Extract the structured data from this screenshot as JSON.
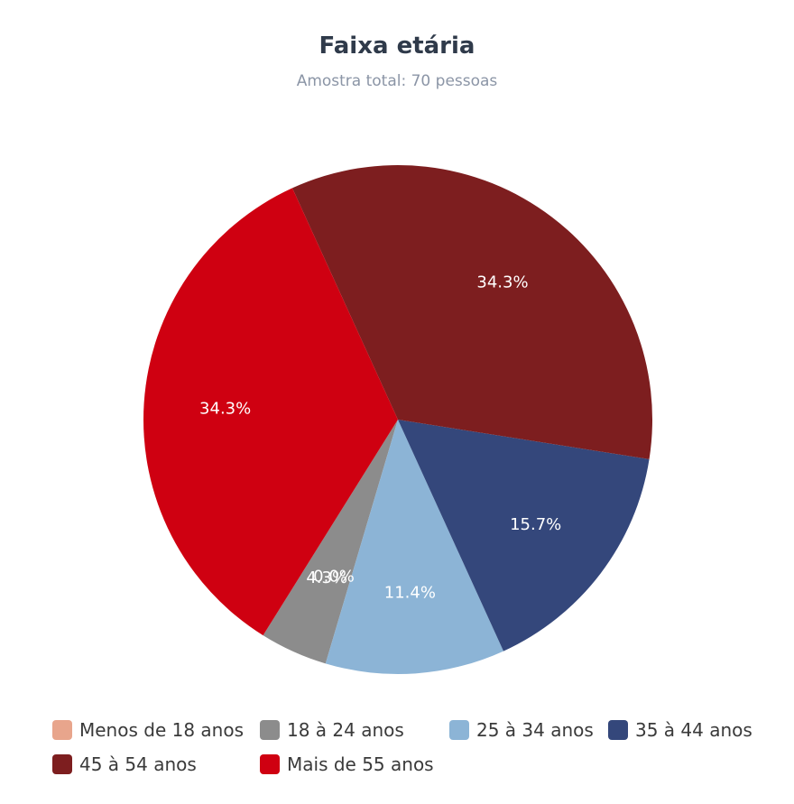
{
  "chart_data": {
    "type": "pie",
    "title": "Faixa etária",
    "subtitle": "Amostra total: 70 pessoas",
    "legend_placement": "bottom",
    "slices": [
      {
        "name": "Menos de 18 anos",
        "value": 0.0,
        "label": "",
        "color": "#e8a58c"
      },
      {
        "name": "18 à 24 anos",
        "value": 4.3,
        "label": "4.3%",
        "color": "#8c8c8c"
      },
      {
        "name": "25 à 34 anos",
        "value": 11.4,
        "label": "11.4%",
        "color": "#8cb4d6"
      },
      {
        "name": "35 à 44 anos",
        "value": 15.7,
        "label": "15.7%",
        "color": "#34477b"
      },
      {
        "name": "45 à 54 anos",
        "value": 34.3,
        "label": "34.3%",
        "color": "#7d1e1f"
      },
      {
        "name": "Mais de 55 anos",
        "value": 34.3,
        "label": "34.3%",
        "color": "#cf0011"
      }
    ],
    "extra_labels": [
      "0.0%"
    ]
  }
}
